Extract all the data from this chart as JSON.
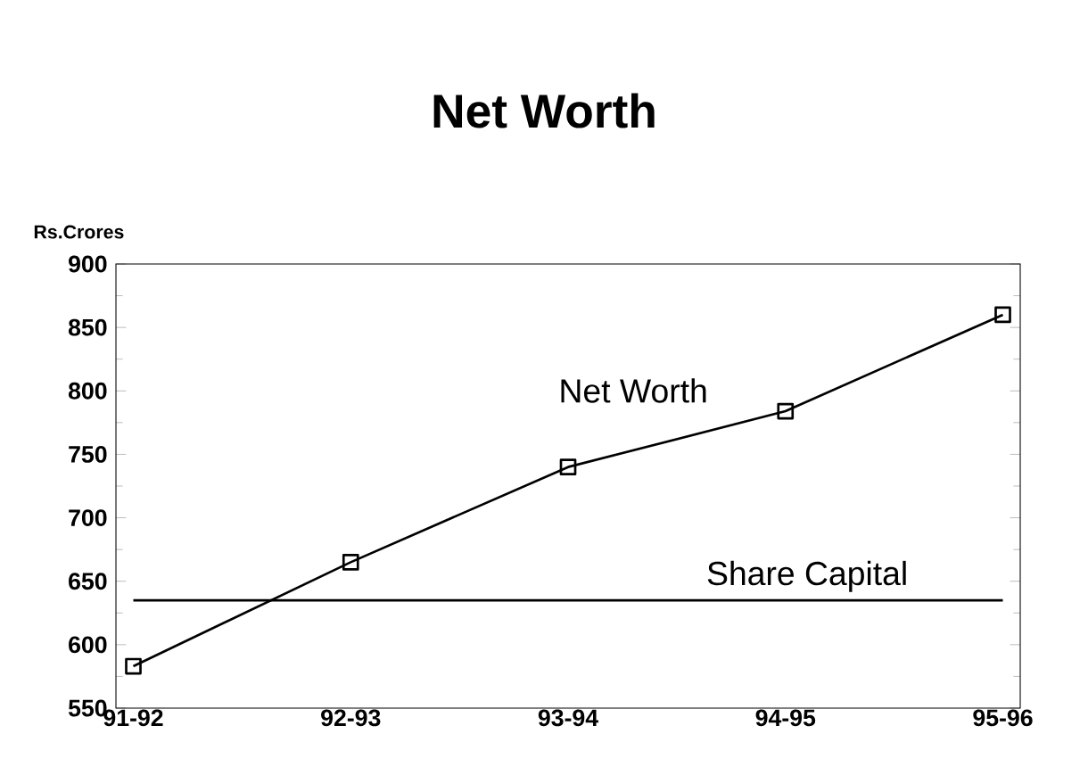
{
  "chart_data": {
    "type": "line",
    "title": "Net Worth",
    "ylabel": "Rs.Crores",
    "categories": [
      "91-92",
      "92-93",
      "93-94",
      "94-95",
      "95-96"
    ],
    "series": [
      {
        "name": "Net Worth",
        "color": "#000000",
        "values": [
          583,
          665,
          740,
          784,
          860
        ]
      }
    ],
    "ylim": [
      550,
      900
    ],
    "yticks": [
      550,
      600,
      650,
      700,
      750,
      800,
      850,
      900
    ],
    "ref_lines": [
      {
        "axis": "y",
        "value": 635,
        "label": "Share Capital",
        "color": "#000000"
      }
    ],
    "marker": "square",
    "line_style": "solid",
    "grid": false
  }
}
